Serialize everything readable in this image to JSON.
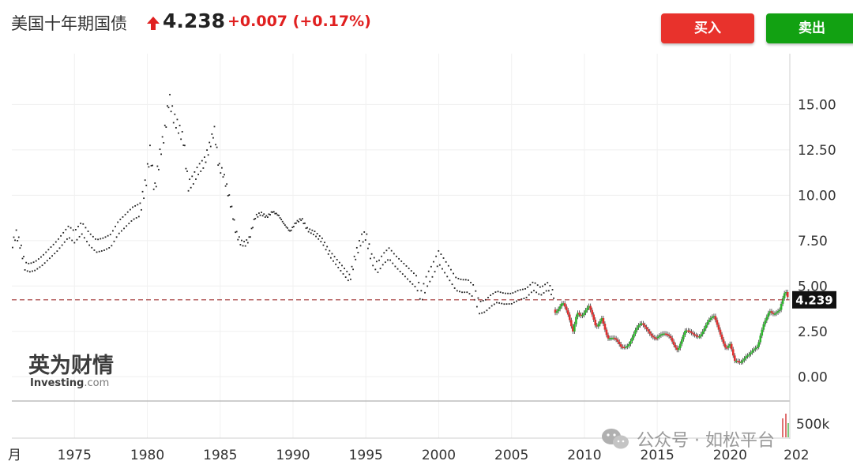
{
  "header": {
    "title": "美国十年期国债",
    "price": "4.238",
    "change": "+0.007",
    "change_pct": "(+0.17%)",
    "buy_label": "买入",
    "sell_label": "卖出"
  },
  "colors": {
    "up": "#e02020",
    "buy": "#e8322c",
    "sell": "#12a112",
    "candle_up": "#2db52d",
    "candle_down": "#e03030",
    "price_line": "#a03030",
    "price_tag": "#111111"
  },
  "logo": {
    "cn": "英为财情",
    "en": "Investing",
    "suffix": ".com"
  },
  "watermark": "公众号 · 如松平台",
  "chart_data": {
    "type": "line",
    "title": "",
    "xlabel": "",
    "ylabel": "",
    "x_range": [
      1970.7,
      2024.1
    ],
    "ylim": [
      -1.25,
      17.8
    ],
    "y_ticks": [
      "15.00",
      "12.50",
      "10.00",
      "7.50",
      "5.00",
      "2.50",
      "0.00"
    ],
    "x_ticks": [
      "月",
      "1975",
      "1980",
      "1985",
      "1990",
      "1995",
      "2000",
      "2005",
      "2010",
      "2015",
      "2020",
      "202"
    ],
    "current_price_label": "4.239",
    "current_price": 4.239,
    "volume_label": "500k",
    "grid": true,
    "series": [
      {
        "style": "dots",
        "x": [
          1970.75,
          1971.0,
          1971.3,
          1971.6,
          1971.9,
          1972.3,
          1972.8,
          1973.3,
          1973.8,
          1974.2,
          1974.6,
          1975.0,
          1975.5,
          1976.0,
          1976.5,
          1977.0,
          1977.5,
          1978.0,
          1978.5,
          1979.0,
          1979.5,
          1979.9,
          1980.2,
          1980.5,
          1980.9,
          1981.2,
          1981.5,
          1981.8,
          1982.1,
          1982.5,
          1982.8,
          1983.1,
          1983.5,
          1983.9,
          1984.2,
          1984.6,
          1984.9,
          1985.2,
          1985.5,
          1985.8,
          1986.1,
          1986.4,
          1986.7,
          1987.0,
          1987.4,
          1987.8,
          1988.2,
          1988.6,
          1989.0,
          1989.4,
          1989.8,
          1990.2,
          1990.6,
          1991.0,
          1991.5,
          1992.0,
          1992.5,
          1993.0,
          1993.5,
          1993.9,
          1994.3,
          1994.7,
          1995.0,
          1995.4,
          1995.8,
          1996.2,
          1996.6,
          1997.0,
          1997.5,
          1998.0,
          1998.5,
          1998.8,
          1999.2,
          1999.6,
          2000.0,
          2000.4,
          2000.8,
          2001.2,
          2001.6,
          2002.0,
          2002.4,
          2002.8,
          2003.2,
          2003.6,
          2004.0,
          2004.5,
          2005.0,
          2005.5,
          2006.0,
          2006.5,
          2007.0,
          2007.5,
          2007.9
        ],
        "y": [
          7.3,
          7.9,
          7.2,
          6.1,
          6.0,
          6.1,
          6.4,
          6.8,
          7.2,
          7.6,
          8.0,
          7.7,
          8.2,
          7.6,
          7.2,
          7.3,
          7.5,
          8.2,
          8.6,
          9.0,
          9.2,
          10.7,
          12.5,
          10.2,
          12.4,
          13.5,
          15.4,
          14.3,
          13.8,
          13.0,
          10.5,
          10.8,
          11.4,
          11.8,
          12.5,
          13.6,
          11.6,
          11.2,
          10.3,
          9.2,
          7.9,
          7.4,
          7.3,
          7.6,
          8.8,
          9.0,
          8.8,
          9.1,
          8.9,
          8.4,
          8.0,
          8.5,
          8.7,
          8.1,
          7.9,
          7.5,
          6.8,
          6.3,
          5.8,
          5.4,
          6.7,
          7.6,
          7.8,
          6.5,
          6.0,
          6.5,
          6.8,
          6.4,
          6.0,
          5.6,
          5.2,
          4.4,
          5.3,
          5.9,
          6.6,
          6.1,
          5.6,
          5.1,
          5.0,
          5.0,
          4.7,
          3.8,
          3.9,
          4.2,
          4.4,
          4.3,
          4.3,
          4.5,
          4.6,
          5.0,
          4.7,
          5.0,
          4.5
        ]
      },
      {
        "style": "candles",
        "x": [
          2008.0,
          2008.5,
          2008.9,
          2009.2,
          2009.5,
          2009.8,
          2010.3,
          2010.8,
          2011.2,
          2011.6,
          2012.0,
          2012.5,
          2013.0,
          2013.5,
          2013.9,
          2014.4,
          2014.9,
          2015.4,
          2015.9,
          2016.4,
          2016.9,
          2017.4,
          2017.9,
          2018.4,
          2018.9,
          2019.3,
          2019.7,
          2020.0,
          2020.3,
          2020.7,
          2021.1,
          2021.5,
          2021.9,
          2022.3,
          2022.7,
          2023.0,
          2023.4,
          2023.8,
          2024.0
        ],
        "y": [
          3.7,
          4.1,
          3.2,
          2.4,
          3.7,
          3.5,
          3.8,
          2.6,
          3.4,
          2.2,
          2.0,
          1.6,
          1.9,
          2.5,
          2.8,
          2.6,
          2.2,
          2.2,
          2.2,
          1.6,
          2.4,
          2.3,
          2.4,
          2.9,
          3.2,
          2.5,
          1.7,
          1.8,
          0.7,
          0.7,
          1.3,
          1.5,
          1.5,
          2.8,
          3.8,
          3.6,
          3.6,
          4.6,
          4.2
        ]
      }
    ]
  }
}
